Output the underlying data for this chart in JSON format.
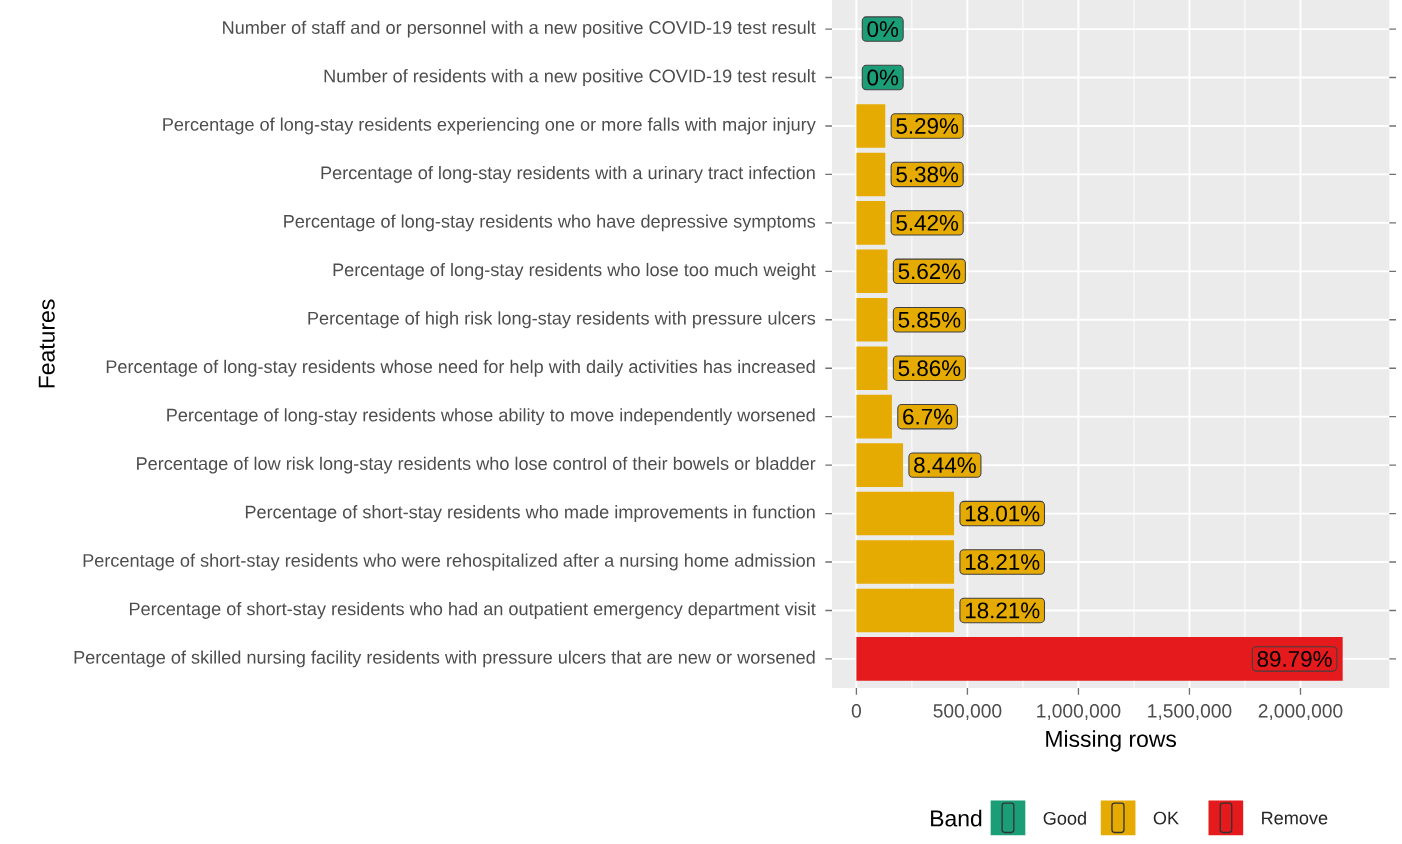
{
  "chart_data": {
    "type": "bar",
    "orientation": "horizontal",
    "xlabel": "Missing rows",
    "ylabel": "Features",
    "legend_title": "Band",
    "categories": [
      "Number of staff and or personnel with a new positive COVID-19 test result",
      "Number of residents with a new positive COVID-19 test result",
      "Percentage of long-stay residents experiencing one or more falls with major injury",
      "Percentage of long-stay residents with a urinary tract infection",
      "Percentage of long-stay residents who have depressive symptoms",
      "Percentage of long-stay residents who lose too much weight",
      "Percentage of high risk long-stay residents with pressure ulcers",
      "Percentage of long-stay residents whose need for help with daily activities has increased",
      "Percentage of long-stay residents whose ability to move independently worsened",
      "Percentage of low risk long-stay residents who lose control of their bowels or bladder",
      "Percentage of short-stay residents who made improvements in function",
      "Percentage of short-stay residents who were rehospitalized after a nursing home admission",
      "Percentage of short-stay residents who had an outpatient emergency department visit",
      "Percentage of skilled nursing facility residents with pressure ulcers that are new or worsened"
    ],
    "series": [
      {
        "name": "Good",
        "color": "#1b9e77",
        "values": [
          0,
          0,
          null,
          null,
          null,
          null,
          null,
          null,
          null,
          null,
          null,
          null,
          null,
          null
        ]
      },
      {
        "name": "OK",
        "color": "#e6ab02",
        "values": [
          null,
          null,
          130000,
          130000,
          130000,
          140000,
          140000,
          140000,
          160000,
          210000,
          440000,
          440000,
          440000,
          null
        ]
      },
      {
        "name": "Remove",
        "color": "#e41a1c",
        "values": [
          null,
          null,
          null,
          null,
          null,
          null,
          null,
          null,
          null,
          null,
          null,
          null,
          null,
          2190000
        ]
      }
    ],
    "annotations": [
      {
        "text": "0%",
        "x": 0,
        "y": "Number of staff and or personnel with a new positive COVID-19 test result"
      },
      {
        "text": "0%",
        "x": 0,
        "y": "Number of residents with a new positive COVID-19 test result"
      },
      {
        "text": "5.29%",
        "x": 130000,
        "y": "Percentage of long-stay residents experiencing one or more falls with major injury"
      },
      {
        "text": "5.38%",
        "x": 130000,
        "y": "Percentage of long-stay residents with a urinary tract infection"
      },
      {
        "text": "5.42%",
        "x": 130000,
        "y": "Percentage of long-stay residents who have depressive symptoms"
      },
      {
        "text": "5.62%",
        "x": 140000,
        "y": "Percentage of long-stay residents who lose too much weight"
      },
      {
        "text": "5.85%",
        "x": 140000,
        "y": "Percentage of high risk long-stay residents with pressure ulcers"
      },
      {
        "text": "5.86%",
        "x": 140000,
        "y": "Percentage of long-stay residents whose need for help with daily activities has increased"
      },
      {
        "text": "6.7%",
        "x": 160000,
        "y": "Percentage of long-stay residents whose ability to move independently worsened"
      },
      {
        "text": "8.44%",
        "x": 210000,
        "y": "Percentage of low risk long-stay residents who lose control of their bowels or bladder"
      },
      {
        "text": "18.01%",
        "x": 440000,
        "y": "Percentage of short-stay residents who made improvements in function"
      },
      {
        "text": "18.21%",
        "x": 440000,
        "y": "Percentage of short-stay residents who were rehospitalized after a nursing home admission"
      },
      {
        "text": "18.21%",
        "x": 440000,
        "y": "Percentage of short-stay residents who had an outpatient emergency department visit"
      },
      {
        "text": "89.79%",
        "x": 2190000,
        "y": "Percentage of skilled nursing facility residents with pressure ulcers that are new or worsened"
      }
    ],
    "xlim": [
      -110000,
      2400000
    ],
    "xticks": [
      {
        "value": 0,
        "label": "0"
      },
      {
        "value": 500000,
        "label": "500,000"
      },
      {
        "value": 1000000,
        "label": "1,000,000"
      },
      {
        "value": 1500000,
        "label": "1,500,000"
      },
      {
        "value": 2000000,
        "label": "2,000,000"
      }
    ],
    "grid": true,
    "legend": "bottom"
  }
}
